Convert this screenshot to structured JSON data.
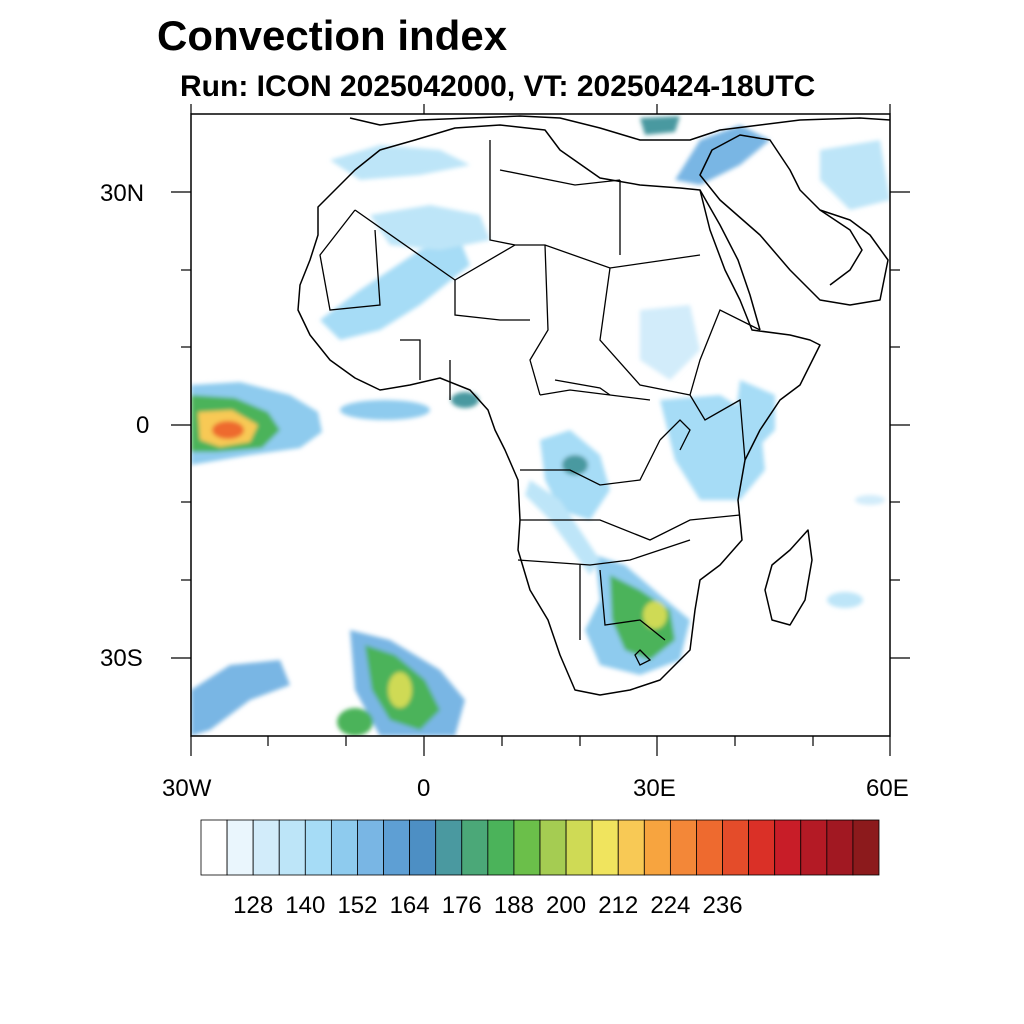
{
  "title": "Convection index",
  "subtitle": "Run: ICON 2025042000,  VT: 20250424-18UTC",
  "map": {
    "lon_range": [
      -30,
      60
    ],
    "lat_range": [
      -40,
      40
    ],
    "lon_ticks": [
      {
        "value": -30,
        "label": "30W"
      },
      {
        "value": 0,
        "label": "0"
      },
      {
        "value": 30,
        "label": "30E"
      },
      {
        "value": 60,
        "label": "60E"
      }
    ],
    "lat_ticks": [
      {
        "value": 30,
        "label": "30N"
      },
      {
        "value": 0,
        "label": "0"
      },
      {
        "value": -30,
        "label": "30S"
      }
    ]
  },
  "colorbar": {
    "colors": [
      "#ffffff",
      "#eaf6fd",
      "#d2ecfa",
      "#bde5f8",
      "#a6dcf6",
      "#8ecbee",
      "#79b6e4",
      "#5e9fd4",
      "#4d8fc4",
      "#4a99a0",
      "#4ba878",
      "#4bb35a",
      "#6bbf4a",
      "#a5cc52",
      "#cfda55",
      "#f0e45e",
      "#f8c955",
      "#f7a43f",
      "#f38738",
      "#ee6a2f",
      "#e44c2a",
      "#da3027",
      "#c81d28",
      "#b41a25",
      "#a11822",
      "#8c1a1c"
    ],
    "labels": [
      "128",
      "140",
      "152",
      "164",
      "176",
      "188",
      "200",
      "212",
      "224",
      "236"
    ]
  }
}
